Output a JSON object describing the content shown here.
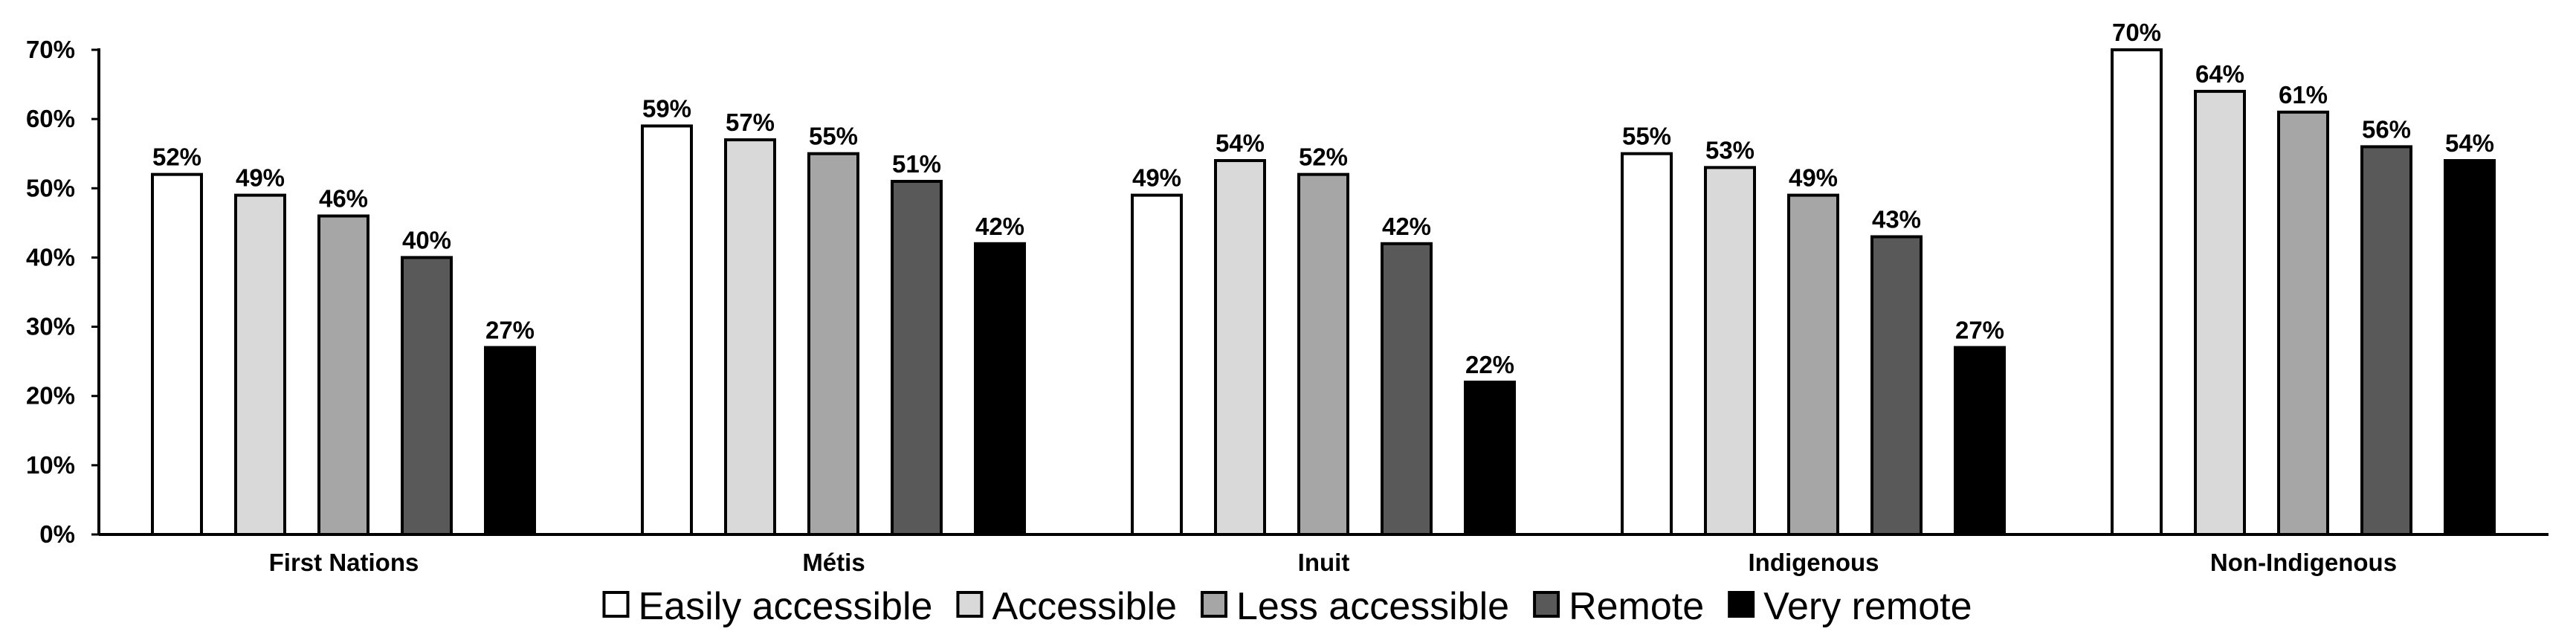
{
  "chart_data": {
    "type": "bar",
    "categories": [
      "First Nations",
      "Métis",
      "Inuit",
      "Indigenous",
      "Non-Indigenous"
    ],
    "series": [
      {
        "name": "Easily accessible",
        "color": "#ffffff",
        "values": [
          52,
          59,
          49,
          55,
          70
        ],
        "labels": [
          "52%",
          "59%",
          "49%",
          "55%",
          "70%"
        ]
      },
      {
        "name": "Accessible",
        "color": "#d9d9d9",
        "values": [
          49,
          57,
          54,
          53,
          64
        ],
        "labels": [
          "49%",
          "57%",
          "54%",
          "53%",
          "64%"
        ]
      },
      {
        "name": "Less accessible",
        "color": "#a6a6a6",
        "values": [
          46,
          55,
          52,
          49,
          61
        ],
        "labels": [
          "46%",
          "55%",
          "52%",
          "49%",
          "61%"
        ]
      },
      {
        "name": "Remote",
        "color": "#595959",
        "values": [
          40,
          51,
          42,
          43,
          56
        ],
        "labels": [
          "40%",
          "51%",
          "42%",
          "43%",
          "56%"
        ]
      },
      {
        "name": "Very remote",
        "color": "#000000",
        "values": [
          27,
          42,
          22,
          27,
          54
        ],
        "labels": [
          "27%",
          "42%",
          "22%",
          "27%",
          "54%"
        ]
      }
    ],
    "yticks": [
      {
        "value": 0,
        "label": "0%"
      },
      {
        "value": 10,
        "label": "10%"
      },
      {
        "value": 20,
        "label": "20%"
      },
      {
        "value": 30,
        "label": "30%"
      },
      {
        "value": 40,
        "label": "40%"
      },
      {
        "value": 50,
        "label": "50%"
      },
      {
        "value": 60,
        "label": "60%"
      },
      {
        "value": 70,
        "label": "70%"
      }
    ],
    "ylim": [
      0,
      70
    ],
    "title": "",
    "xlabel": "",
    "ylabel": "",
    "grid": false,
    "legend": "bottom"
  }
}
